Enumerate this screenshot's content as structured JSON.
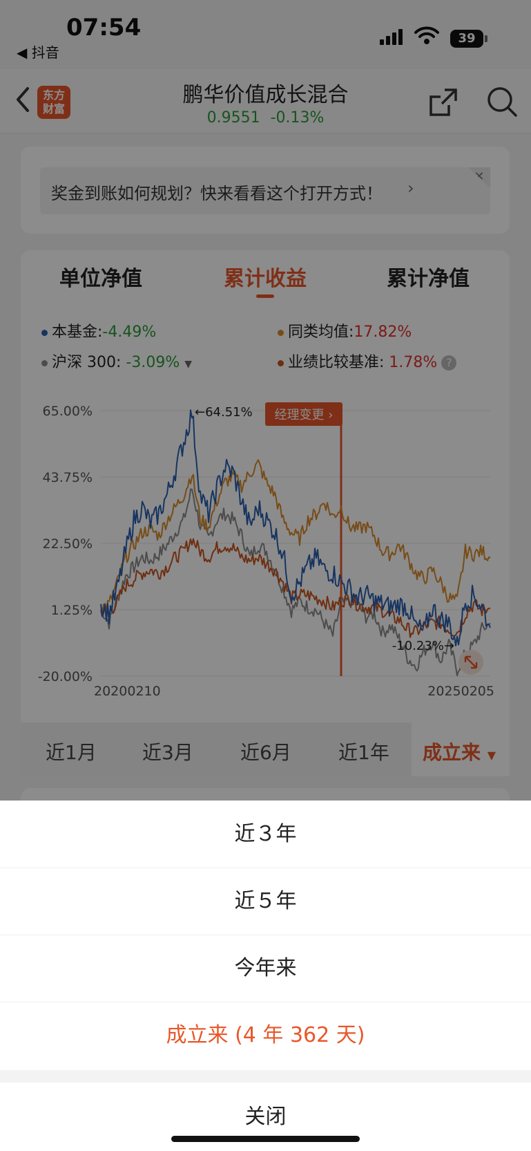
{
  "status_bar": {
    "time": "07:54",
    "back_app": "◀ 抖音",
    "battery": "39"
  },
  "header": {
    "title": "鹏华价值成长混合",
    "nav_value": "0.9551",
    "change": "-0.13%",
    "logo_text": [
      "东方",
      "财富"
    ]
  },
  "banner": {
    "text": "奖金到账如何规划？快来看看这个打开方式！",
    "arrow": "›",
    "close": "✕"
  },
  "tabs": [
    {
      "label": "单位净值",
      "active": false
    },
    {
      "label": "累计收益",
      "active": true
    },
    {
      "label": "累计净值",
      "active": false
    }
  ],
  "legend": {
    "fund": {
      "label": "本基金:",
      "value": "-4.49%"
    },
    "peer": {
      "label": "同类均值:",
      "value": "17.82%"
    },
    "hs300": {
      "label": "沪深 300:",
      "value": "-3.09%"
    },
    "benchmark": {
      "label": "业绩比较基准:",
      "value": "1.78%"
    }
  },
  "chart_data": {
    "type": "line",
    "ytick_labels": [
      "65.00%",
      "43.75%",
      "22.50%",
      "1.25%",
      "-20.00%"
    ],
    "ylim": [
      -20,
      65
    ],
    "x_labels": [
      "20200210",
      "20250205"
    ],
    "annotations": {
      "max": "64.51%",
      "min": "-10.23%",
      "event": "经理变更 ›"
    },
    "grid": true,
    "series": [
      {
        "name": "本基金",
        "color": "#2a5fb0",
        "values": [
          3,
          0,
          8,
          20,
          30,
          34,
          29,
          32,
          38,
          46,
          55,
          64.5,
          38,
          32,
          40,
          47,
          45,
          36,
          28,
          34,
          30,
          26,
          19,
          6,
          10,
          15,
          18,
          14,
          13,
          10,
          8,
          5,
          6,
          4,
          3,
          2,
          3,
          2,
          -4,
          -6,
          2,
          -2,
          -3,
          -10.2,
          4,
          6,
          2,
          -4.5
        ]
      },
      {
        "name": "同类均值",
        "color": "#d98a2a",
        "values": [
          2,
          3,
          10,
          18,
          22,
          26,
          27,
          25,
          30,
          34,
          38,
          45,
          30,
          28,
          36,
          42,
          44,
          41,
          45,
          48,
          42,
          38,
          30,
          26,
          24,
          30,
          32,
          36,
          31,
          34,
          28,
          27,
          28,
          25,
          20,
          19,
          22,
          18,
          13,
          11,
          14,
          10,
          5,
          4,
          20,
          19,
          20,
          17.8
        ]
      },
      {
        "name": "沪深 300",
        "color": "#8a8a8a",
        "values": [
          2,
          -3,
          5,
          12,
          15,
          18,
          17,
          19,
          22,
          26,
          30,
          40,
          28,
          24,
          30,
          32,
          30,
          25,
          18,
          22,
          20,
          14,
          8,
          1,
          4,
          2,
          1,
          -3,
          -7,
          3,
          4,
          3,
          -1,
          0,
          -6,
          -4,
          -8,
          -14,
          -17,
          -12,
          -9,
          -15,
          -10,
          -18,
          -13,
          -10,
          -5,
          -3.1
        ]
      },
      {
        "name": "业绩比较基准",
        "color": "#c9541f",
        "values": [
          1,
          0,
          4,
          9,
          11,
          13,
          14,
          13,
          15,
          18,
          20,
          24,
          20,
          18,
          21,
          22,
          21,
          18,
          17,
          18,
          16,
          14,
          10,
          5,
          6,
          6,
          5,
          4,
          2,
          4,
          5,
          3,
          2,
          2,
          1,
          -1,
          -2,
          -5,
          -6,
          -4,
          -3,
          -3,
          -5,
          -6,
          0,
          3,
          1,
          1.78
        ]
      }
    ]
  },
  "periods": [
    {
      "label": "近1月",
      "active": false
    },
    {
      "label": "近3月",
      "active": false
    },
    {
      "label": "近6月",
      "active": false
    },
    {
      "label": "近1年",
      "active": false
    },
    {
      "label": "成立来",
      "active": true
    }
  ],
  "sheet": {
    "options": [
      {
        "label": "近３年",
        "active": false
      },
      {
        "label": "近５年",
        "active": false
      },
      {
        "label": "今年来",
        "active": false
      },
      {
        "label": "成立来 (4 年 362 天)",
        "active": true
      }
    ],
    "close": "关闭"
  },
  "colors": {
    "accent": "#e8572a",
    "up": "#e0312e",
    "down": "#2a9a3a"
  }
}
